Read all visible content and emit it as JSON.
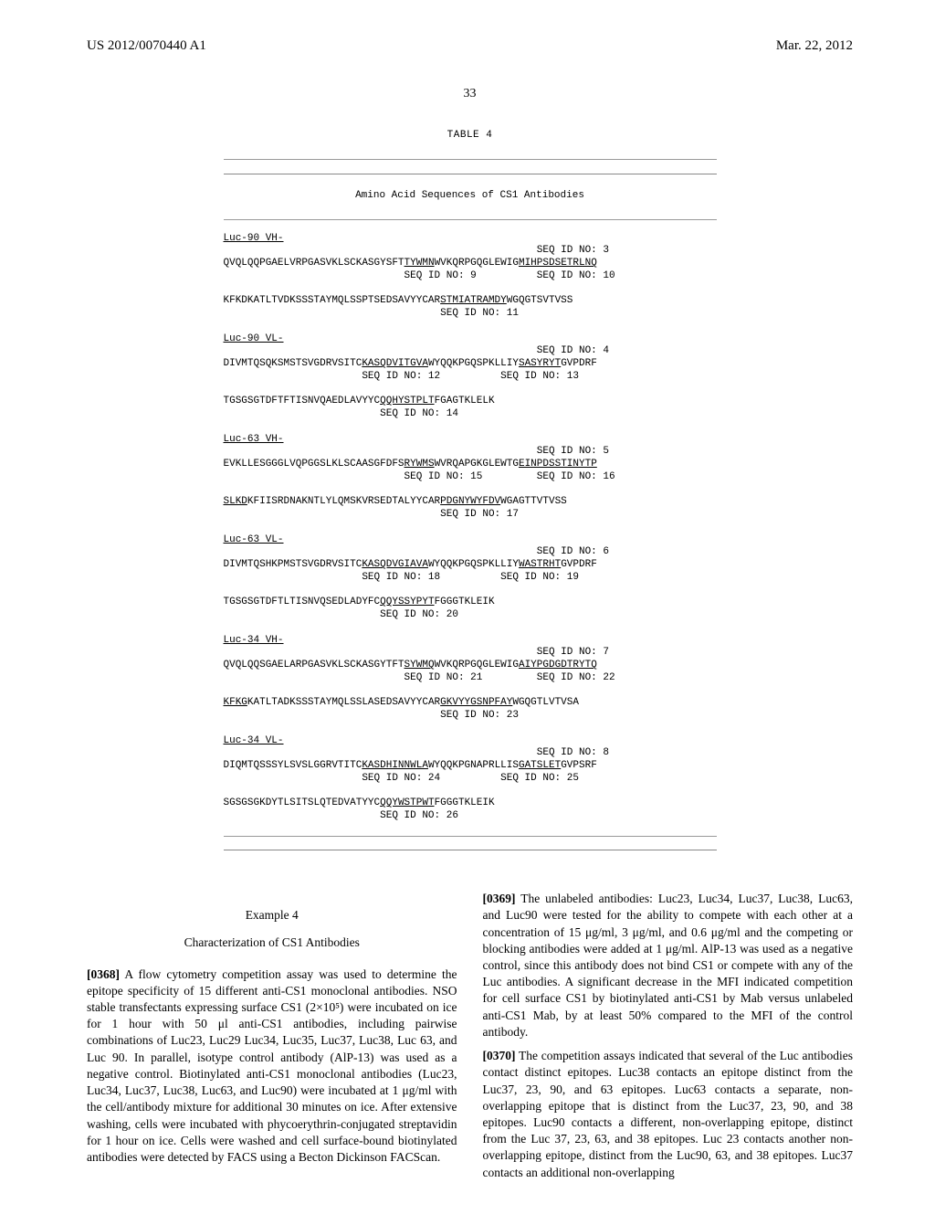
{
  "header": {
    "left": "US 2012/0070440 A1",
    "right": "Mar. 22, 2012"
  },
  "pagenum": "33",
  "table": {
    "title": "TABLE 4",
    "subtitle": "Amino Acid Sequences of CS1 Antibodies",
    "entries": [
      {
        "name": "Luc-90 VH-",
        "seq_id_top": "SEQ ID NO: 3",
        "line1_pre": "QVQLQQPGAELVRPGASVKLSCKASGYSFT",
        "line1_u1": "TYWMN",
        "line1_mid": "WVKQRPGQGLEWIG",
        "line1_u2": "MIHPSDSETRLNQ",
        "line1_sub": "                              SEQ ID NO: 9          SEQ ID NO: 10",
        "line2_pre": "KFKDKATLTVDKSSSTAYMQLSSPTSEDSAVYYCAR",
        "line2_u1": "STMIATRAMDY",
        "line2_post": "WGQGTSVTVSS",
        "line2_sub": "                                    SEQ ID NO: 11"
      },
      {
        "name": "Luc-90 VL-",
        "seq_id_top": "SEQ ID NO: 4",
        "line1_pre": "DIVMTQSQKSMSTSVGDRVSITC",
        "line1_u1": "KASQDVITGVA",
        "line1_mid": "WYQQKPGQSPKLLIY",
        "line1_u2": "SASYRYT",
        "line1_post": "GVPDRF",
        "line1_sub": "                       SEQ ID NO: 12          SEQ ID NO: 13",
        "line2_pre": "TGSGSGTDFTFTISNVQAEDLAVYYC",
        "line2_u1": "QQHYSTPLT",
        "line2_post": "FGAGTKLELK",
        "line2_sub": "                          SEQ ID NO: 14"
      },
      {
        "name": "Luc-63 VH-",
        "seq_id_top": "SEQ ID NO: 5",
        "line1_pre": "EVKLLESGGGLVQPGGSLKLSCAASGFDFS",
        "line1_u1": "RYWMS",
        "line1_mid": "WVRQAPGKGLEWTG",
        "line1_u2": "EINPDSSTINYTP",
        "line1_sub": "                              SEQ ID NO: 15         SEQ ID NO: 16",
        "line2_u0": "SLKD",
        "line2_pre": "KFIISRDNAKNTLYLQMSKVRSEDTALYYCAR",
        "line2_u1": "PDGNYWYFDV",
        "line2_post": "WGAGTTVTVSS",
        "line2_sub": "                                    SEQ ID NO: 17"
      },
      {
        "name": "Luc-63 VL-",
        "seq_id_top": "SEQ ID NO: 6",
        "line1_pre": "DIVMTQSHKPMSTSVGDRVSITC",
        "line1_u1": "KASQDVGIAVA",
        "line1_mid": "WYQQKPGQSPKLLIY",
        "line1_u2": "WASTRHT",
        "line1_post": "GVPDRF",
        "line1_sub": "                       SEQ ID NO: 18          SEQ ID NO: 19",
        "line2_pre": "TGSGSGTDFTLTISNVQSEDLADYFC",
        "line2_u1": "QQYSSYPYT",
        "line2_post": "FGGGTKLEIK",
        "line2_sub": "                          SEQ ID NO: 20"
      },
      {
        "name": "Luc-34 VH-",
        "seq_id_top": "SEQ ID NO: 7",
        "line1_pre": "QVQLQQSGAELARPGASVKLSCKASGYTFT",
        "line1_u1": "SYWMQ",
        "line1_mid": "WVKQRPGQGLEWIG",
        "line1_u2": "AIYPGDGDTRYTQ",
        "line1_sub": "                              SEQ ID NO: 21         SEQ ID NO: 22",
        "line2_u0": "KFKG",
        "line2_pre": "KATLTADKSSSTAYMQLSSLASEDSAVYYCAR",
        "line2_u1": "GKVYYGSNPFAY",
        "line2_post": "WGQGTLVTVSA",
        "line2_sub": "                                    SEQ ID NO: 23"
      },
      {
        "name": "Luc-34 VL-",
        "seq_id_top": "SEQ ID NO: 8",
        "line1_pre": "DIQMTQSSSYLSVSLGGRVTITC",
        "line1_u1": "KASDHINNWLA",
        "line1_mid": "WYQQKPGNAPRLLIS",
        "line1_u2": "GATSLET",
        "line1_post": "GVPSRF",
        "line1_sub": "                       SEQ ID NO: 24          SEQ ID NO: 25",
        "line2_pre": "SGSGSGKDYTLSITSLQTEDVATYYC",
        "line2_u1": "QQYWSTPWT",
        "line2_post": "FGGGTKLEIK",
        "line2_sub": "                          SEQ ID NO: 26"
      }
    ]
  },
  "example": {
    "num": "Example 4",
    "title": "Characterization of CS1 Antibodies"
  },
  "paras": {
    "p0368_num": "[0368]",
    "p0368": "   A flow cytometry competition assay was used to determine the epitope specificity of 15 different anti-CS1 monoclonal antibodies. NSO stable transfectants expressing surface CS1 (2×10⁵) were incubated on ice for 1 hour with 50 μl anti-CS1 antibodies, including pairwise combinations of Luc23, Luc29 Luc34, Luc35, Luc37, Luc38, Luc 63, and Luc 90. In parallel, isotype control antibody (AlP-13) was used as a negative control. Biotinylated anti-CS1 monoclonal antibodies (Luc23, Luc34, Luc37, Luc38, Luc63, and Luc90) were incubated at 1 μg/ml with the cell/antibody mixture for additional 30 minutes on ice. After extensive washing, cells were incubated with phycoerythrin-conjugated streptavidin for 1 hour on ice. Cells were washed and cell surface-bound biotinylated antibodies were detected by FACS using a Becton Dickinson FACScan.",
    "p0369_num": "[0369]",
    "p0369": "   The unlabeled antibodies: Luc23, Luc34, Luc37, Luc38, Luc63, and Luc90 were tested for the ability to compete with each other at a concentration of 15 μg/ml, 3 μg/ml, and 0.6 μg/ml and the competing or blocking antibodies were added at 1 μg/ml. AlP-13 was used as a negative control, since this antibody does not bind CS1 or compete with any of the Luc antibodies. A significant decrease in the MFI indicated competition for cell surface CS1 by biotinylated anti-CS1 by Mab versus unlabeled anti-CS1 Mab, by at least 50% compared to the MFI of the control antibody.",
    "p0370_num": "[0370]",
    "p0370": "   The competition assays indicated that several of the Luc antibodies contact distinct epitopes. Luc38 contacts an epitope distinct from the Luc37, 23, 90, and 63 epitopes. Luc63 contacts a separate, non-overlapping epitope that is distinct from the Luc37, 23, 90, and 38 epitopes. Luc90 contacts a different, non-overlapping epitope, distinct from the Luc 37, 23, 63, and 38 epitopes. Luc 23 contacts another non-overlapping epitope, distinct from the Luc90, 63, and 38 epitopes. Luc37 contacts an additional non-overlapping"
  }
}
